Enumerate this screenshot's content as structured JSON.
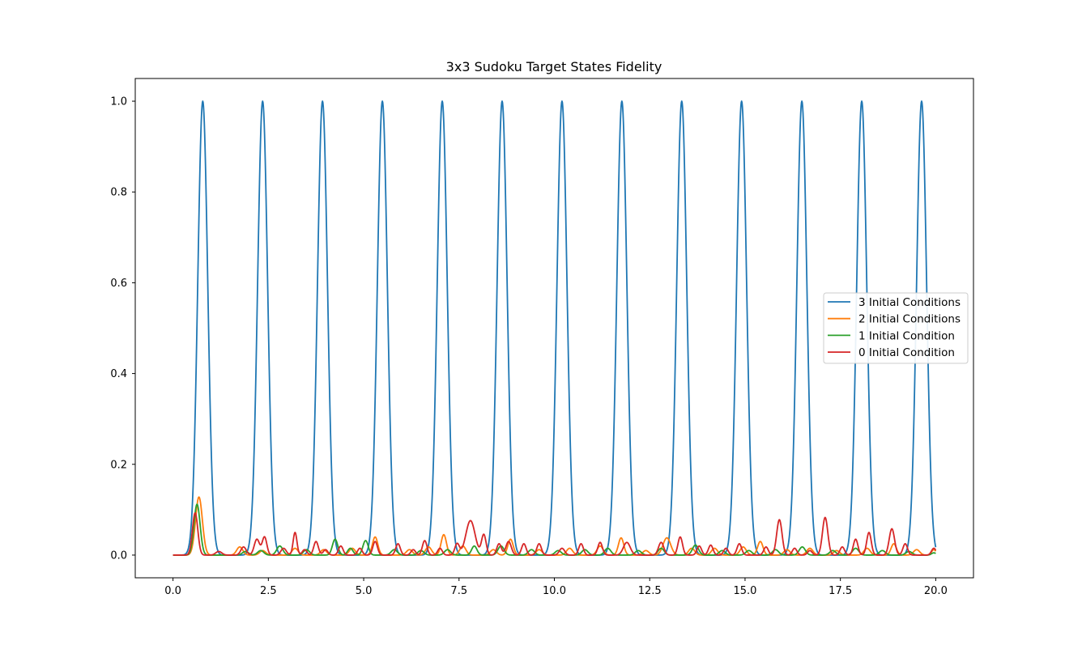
{
  "chart_data": {
    "type": "line",
    "title": "3x3 Sudoku Target States Fidelity",
    "xlabel": "",
    "ylabel": "",
    "xlim": [
      -0.99,
      20.99
    ],
    "ylim": [
      -0.05,
      1.05
    ],
    "xticks": [
      {
        "value": 0.0,
        "label": "0.0"
      },
      {
        "value": 2.5,
        "label": "2.5"
      },
      {
        "value": 5.0,
        "label": "5.0"
      },
      {
        "value": 7.5,
        "label": "7.5"
      },
      {
        "value": 10.0,
        "label": "10.0"
      },
      {
        "value": 12.5,
        "label": "12.5"
      },
      {
        "value": 15.0,
        "label": "15.0"
      },
      {
        "value": 17.5,
        "label": "17.5"
      },
      {
        "value": 20.0,
        "label": "20.0"
      }
    ],
    "yticks": [
      {
        "value": 0.0,
        "label": "0.0"
      },
      {
        "value": 0.2,
        "label": "0.2"
      },
      {
        "value": 0.4,
        "label": "0.4"
      },
      {
        "value": 0.6,
        "label": "0.6"
      },
      {
        "value": 0.8,
        "label": "0.8"
      },
      {
        "value": 1.0,
        "label": "1.0"
      }
    ],
    "grid": false,
    "legend_position": "center-right",
    "series": [
      {
        "name": "3 Initial Conditions",
        "color": "#1f77b4",
        "peaks": [
          {
            "x": 0.78,
            "y": 1.0,
            "w": 0.13
          },
          {
            "x": 2.35,
            "y": 1.0,
            "w": 0.13
          },
          {
            "x": 3.92,
            "y": 1.0,
            "w": 0.13
          },
          {
            "x": 5.49,
            "y": 1.0,
            "w": 0.13
          },
          {
            "x": 7.06,
            "y": 1.0,
            "w": 0.13
          },
          {
            "x": 8.63,
            "y": 1.0,
            "w": 0.13
          },
          {
            "x": 10.2,
            "y": 1.0,
            "w": 0.13
          },
          {
            "x": 11.77,
            "y": 1.0,
            "w": 0.13
          },
          {
            "x": 13.34,
            "y": 1.0,
            "w": 0.13
          },
          {
            "x": 14.91,
            "y": 1.0,
            "w": 0.13
          },
          {
            "x": 16.49,
            "y": 1.0,
            "w": 0.13
          },
          {
            "x": 18.06,
            "y": 1.0,
            "w": 0.13
          },
          {
            "x": 19.63,
            "y": 1.0,
            "w": 0.13
          }
        ]
      },
      {
        "name": "2 Initial Conditions",
        "color": "#ff7f0e",
        "peaks": [
          {
            "x": 0.68,
            "y": 0.128,
            "w": 0.09
          },
          {
            "x": 1.75,
            "y": 0.018,
            "w": 0.08
          },
          {
            "x": 2.35,
            "y": 0.01,
            "w": 0.08
          },
          {
            "x": 3.2,
            "y": 0.015,
            "w": 0.08
          },
          {
            "x": 3.95,
            "y": 0.012,
            "w": 0.08
          },
          {
            "x": 4.7,
            "y": 0.015,
            "w": 0.08
          },
          {
            "x": 5.3,
            "y": 0.04,
            "w": 0.07
          },
          {
            "x": 6.2,
            "y": 0.012,
            "w": 0.08
          },
          {
            "x": 6.7,
            "y": 0.018,
            "w": 0.08
          },
          {
            "x": 7.1,
            "y": 0.045,
            "w": 0.07
          },
          {
            "x": 7.6,
            "y": 0.02,
            "w": 0.08
          },
          {
            "x": 8.4,
            "y": 0.012,
            "w": 0.08
          },
          {
            "x": 8.85,
            "y": 0.035,
            "w": 0.07
          },
          {
            "x": 9.6,
            "y": 0.012,
            "w": 0.08
          },
          {
            "x": 10.4,
            "y": 0.015,
            "w": 0.08
          },
          {
            "x": 11.2,
            "y": 0.02,
            "w": 0.08
          },
          {
            "x": 11.75,
            "y": 0.038,
            "w": 0.07
          },
          {
            "x": 12.4,
            "y": 0.01,
            "w": 0.08
          },
          {
            "x": 12.95,
            "y": 0.038,
            "w": 0.1
          },
          {
            "x": 13.6,
            "y": 0.015,
            "w": 0.08
          },
          {
            "x": 14.2,
            "y": 0.015,
            "w": 0.08
          },
          {
            "x": 14.95,
            "y": 0.018,
            "w": 0.08
          },
          {
            "x": 15.4,
            "y": 0.03,
            "w": 0.07
          },
          {
            "x": 16.1,
            "y": 0.012,
            "w": 0.08
          },
          {
            "x": 16.7,
            "y": 0.015,
            "w": 0.08
          },
          {
            "x": 17.4,
            "y": 0.01,
            "w": 0.08
          },
          {
            "x": 18.2,
            "y": 0.015,
            "w": 0.08
          },
          {
            "x": 18.9,
            "y": 0.025,
            "w": 0.07
          },
          {
            "x": 19.5,
            "y": 0.012,
            "w": 0.08
          },
          {
            "x": 19.95,
            "y": 0.012,
            "w": 0.06
          }
        ]
      },
      {
        "name": "1 Initial Condition",
        "color": "#2ca02c",
        "peaks": [
          {
            "x": 0.63,
            "y": 0.112,
            "w": 0.08
          },
          {
            "x": 1.9,
            "y": 0.008,
            "w": 0.08
          },
          {
            "x": 2.3,
            "y": 0.01,
            "w": 0.08
          },
          {
            "x": 2.8,
            "y": 0.02,
            "w": 0.08
          },
          {
            "x": 3.5,
            "y": 0.012,
            "w": 0.08
          },
          {
            "x": 4.25,
            "y": 0.035,
            "w": 0.07
          },
          {
            "x": 4.65,
            "y": 0.015,
            "w": 0.07
          },
          {
            "x": 5.05,
            "y": 0.032,
            "w": 0.07
          },
          {
            "x": 5.8,
            "y": 0.012,
            "w": 0.08
          },
          {
            "x": 6.5,
            "y": 0.01,
            "w": 0.08
          },
          {
            "x": 7.2,
            "y": 0.012,
            "w": 0.08
          },
          {
            "x": 7.9,
            "y": 0.02,
            "w": 0.07
          },
          {
            "x": 8.6,
            "y": 0.02,
            "w": 0.08
          },
          {
            "x": 9.4,
            "y": 0.012,
            "w": 0.08
          },
          {
            "x": 10.1,
            "y": 0.01,
            "w": 0.08
          },
          {
            "x": 10.8,
            "y": 0.012,
            "w": 0.08
          },
          {
            "x": 11.4,
            "y": 0.015,
            "w": 0.08
          },
          {
            "x": 12.2,
            "y": 0.01,
            "w": 0.08
          },
          {
            "x": 12.8,
            "y": 0.015,
            "w": 0.08
          },
          {
            "x": 13.7,
            "y": 0.022,
            "w": 0.08
          },
          {
            "x": 14.4,
            "y": 0.01,
            "w": 0.08
          },
          {
            "x": 15.1,
            "y": 0.01,
            "w": 0.08
          },
          {
            "x": 15.8,
            "y": 0.012,
            "w": 0.08
          },
          {
            "x": 16.5,
            "y": 0.018,
            "w": 0.08
          },
          {
            "x": 17.3,
            "y": 0.01,
            "w": 0.08
          },
          {
            "x": 17.9,
            "y": 0.015,
            "w": 0.08
          },
          {
            "x": 18.6,
            "y": 0.01,
            "w": 0.08
          },
          {
            "x": 19.3,
            "y": 0.008,
            "w": 0.08
          },
          {
            "x": 19.95,
            "y": 0.005,
            "w": 0.06
          }
        ]
      },
      {
        "name": "0 Initial Condition",
        "color": "#d62728",
        "peaks": [
          {
            "x": 0.58,
            "y": 0.093,
            "w": 0.07
          },
          {
            "x": 1.2,
            "y": 0.008,
            "w": 0.08
          },
          {
            "x": 1.85,
            "y": 0.018,
            "w": 0.07
          },
          {
            "x": 2.2,
            "y": 0.035,
            "w": 0.07
          },
          {
            "x": 2.4,
            "y": 0.04,
            "w": 0.06
          },
          {
            "x": 2.9,
            "y": 0.015,
            "w": 0.07
          },
          {
            "x": 3.2,
            "y": 0.05,
            "w": 0.05
          },
          {
            "x": 3.45,
            "y": 0.012,
            "w": 0.06
          },
          {
            "x": 3.75,
            "y": 0.03,
            "w": 0.06
          },
          {
            "x": 4.0,
            "y": 0.012,
            "w": 0.06
          },
          {
            "x": 4.4,
            "y": 0.02,
            "w": 0.06
          },
          {
            "x": 4.9,
            "y": 0.015,
            "w": 0.06
          },
          {
            "x": 5.3,
            "y": 0.03,
            "w": 0.06
          },
          {
            "x": 5.9,
            "y": 0.025,
            "w": 0.06
          },
          {
            "x": 6.3,
            "y": 0.012,
            "w": 0.06
          },
          {
            "x": 6.6,
            "y": 0.032,
            "w": 0.06
          },
          {
            "x": 7.0,
            "y": 0.015,
            "w": 0.06
          },
          {
            "x": 7.45,
            "y": 0.025,
            "w": 0.06
          },
          {
            "x": 7.8,
            "y": 0.076,
            "w": 0.12
          },
          {
            "x": 8.15,
            "y": 0.045,
            "w": 0.06
          },
          {
            "x": 8.55,
            "y": 0.025,
            "w": 0.06
          },
          {
            "x": 8.8,
            "y": 0.03,
            "w": 0.07
          },
          {
            "x": 9.2,
            "y": 0.025,
            "w": 0.06
          },
          {
            "x": 9.6,
            "y": 0.025,
            "w": 0.06
          },
          {
            "x": 10.2,
            "y": 0.015,
            "w": 0.07
          },
          {
            "x": 10.7,
            "y": 0.025,
            "w": 0.06
          },
          {
            "x": 11.2,
            "y": 0.028,
            "w": 0.06
          },
          {
            "x": 11.9,
            "y": 0.028,
            "w": 0.09
          },
          {
            "x": 12.8,
            "y": 0.028,
            "w": 0.07
          },
          {
            "x": 13.3,
            "y": 0.04,
            "w": 0.06
          },
          {
            "x": 13.8,
            "y": 0.02,
            "w": 0.06
          },
          {
            "x": 14.1,
            "y": 0.022,
            "w": 0.06
          },
          {
            "x": 14.5,
            "y": 0.015,
            "w": 0.06
          },
          {
            "x": 14.85,
            "y": 0.025,
            "w": 0.06
          },
          {
            "x": 15.55,
            "y": 0.018,
            "w": 0.06
          },
          {
            "x": 15.9,
            "y": 0.078,
            "w": 0.07
          },
          {
            "x": 16.3,
            "y": 0.015,
            "w": 0.06
          },
          {
            "x": 16.7,
            "y": 0.01,
            "w": 0.06
          },
          {
            "x": 17.1,
            "y": 0.083,
            "w": 0.07
          },
          {
            "x": 17.55,
            "y": 0.018,
            "w": 0.06
          },
          {
            "x": 17.9,
            "y": 0.035,
            "w": 0.06
          },
          {
            "x": 18.25,
            "y": 0.05,
            "w": 0.06
          },
          {
            "x": 18.85,
            "y": 0.058,
            "w": 0.07
          },
          {
            "x": 19.2,
            "y": 0.025,
            "w": 0.06
          },
          {
            "x": 19.95,
            "y": 0.015,
            "w": 0.06
          }
        ]
      }
    ]
  }
}
